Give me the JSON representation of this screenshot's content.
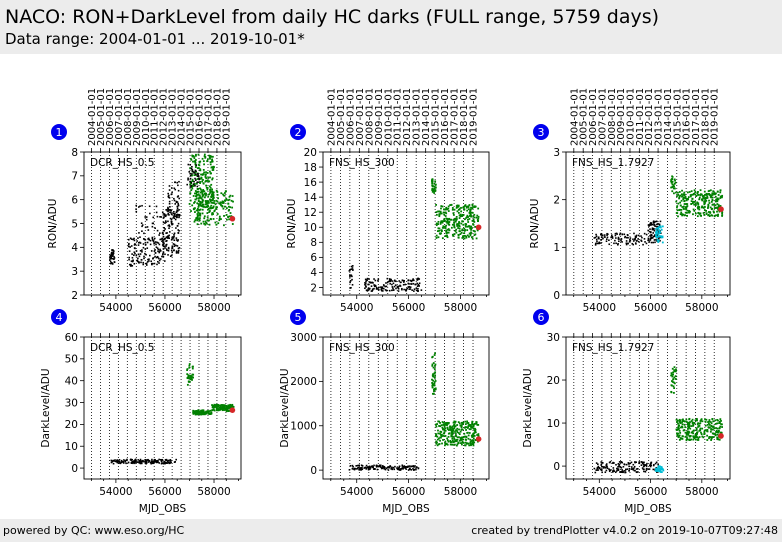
{
  "header": {
    "title": "NACO: RON+DarkLevel from daily HC darks (FULL range, 5759 days)",
    "subtitle": "Data range: 2004-01-01 ... 2019-10-01*"
  },
  "footer": {
    "left": "powered by QC: www.eso.org/HC",
    "right": "created by trendPlotter v4.0.2 on 2019-10-07T09:27:48"
  },
  "colors": {
    "early_points": "#000000",
    "late_points": "#008000",
    "marker_cyan": "#00bcd4",
    "latest_point": "#d62728",
    "badge": "#0000ee"
  },
  "chart_data": {
    "type": "scatter",
    "x_field": "MJD_OBS",
    "xlim": [
      52700,
      59100
    ],
    "x_ticks": [
      54000,
      56000,
      58000
    ],
    "year_markers": [
      {
        "label": "2004-01-01",
        "mjd": 53005
      },
      {
        "label": "2005-01-01",
        "mjd": 53371
      },
      {
        "label": "2006-01-01",
        "mjd": 53736
      },
      {
        "label": "2007-01-01",
        "mjd": 54101
      },
      {
        "label": "2008-01-01",
        "mjd": 54466
      },
      {
        "label": "2009-01-01",
        "mjd": 54832
      },
      {
        "label": "2010-01-01",
        "mjd": 55197
      },
      {
        "label": "2011-01-01",
        "mjd": 55562
      },
      {
        "label": "2012-01-01",
        "mjd": 55927
      },
      {
        "label": "2013-01-01",
        "mjd": 56293
      },
      {
        "label": "2014-01-01",
        "mjd": 56658
      },
      {
        "label": "2015-01-01",
        "mjd": 57023
      },
      {
        "label": "2016-01-01",
        "mjd": 57388
      },
      {
        "label": "2017-01-01",
        "mjd": 57754
      },
      {
        "label": "2018-01-01",
        "mjd": 58119
      },
      {
        "label": "2019-01-01",
        "mjd": 58484
      }
    ],
    "panels": [
      {
        "id": "1",
        "mode": "DCR_HS_0.5",
        "ylabel": "RON/ADU",
        "xlabel": "",
        "ylim": [
          2,
          8
        ],
        "yticks": [
          2,
          3,
          4,
          5,
          6,
          7,
          8
        ],
        "show_year_labels": true,
        "clusters": [
          {
            "x": [
              53750,
              53950
            ],
            "y": [
              3.3,
              3.9
            ],
            "n": 40,
            "color": "early"
          },
          {
            "x": [
              54500,
              56000
            ],
            "y": [
              3.2,
              4.4
            ],
            "n": 140,
            "color": "early"
          },
          {
            "x": [
              54800,
              56000
            ],
            "y": [
              4.2,
              5.8
            ],
            "n": 40,
            "color": "early"
          },
          {
            "x": [
              55900,
              56600
            ],
            "y": [
              3.6,
              5.6
            ],
            "n": 140,
            "color": "early"
          },
          {
            "x": [
              56100,
              56600
            ],
            "y": [
              5.2,
              6.8
            ],
            "n": 50,
            "color": "early"
          },
          {
            "x": [
              57000,
              58000
            ],
            "y": [
              5.5,
              7.9
            ],
            "n": 220,
            "color": "late"
          },
          {
            "x": [
              57200,
              58800
            ],
            "y": [
              4.9,
              6.4
            ],
            "n": 180,
            "color": "late"
          },
          {
            "x": [
              56900,
              57400
            ],
            "y": [
              6.5,
              7.5
            ],
            "n": 40,
            "color": "early"
          }
        ],
        "latest": {
          "x": 58750,
          "y": 5.2
        }
      },
      {
        "id": "2",
        "mode": "FNS_HS_300",
        "ylabel": "RON/ADU",
        "xlabel": "",
        "ylim": [
          1,
          20
        ],
        "yticks": [
          2,
          4,
          6,
          8,
          10,
          12,
          14,
          16,
          18,
          20
        ],
        "show_year_labels": true,
        "clusters": [
          {
            "x": [
              53700,
              53900
            ],
            "y": [
              1.4,
              5.0
            ],
            "n": 20,
            "color": "early"
          },
          {
            "x": [
              54300,
              56500
            ],
            "y": [
              1.5,
              3.2
            ],
            "n": 160,
            "color": "early"
          },
          {
            "x": [
              56900,
              57050
            ],
            "y": [
              14.5,
              16.5
            ],
            "n": 30,
            "color": "late"
          },
          {
            "x": [
              57050,
              58700
            ],
            "y": [
              8.5,
              13.0
            ],
            "n": 280,
            "color": "late"
          }
        ],
        "latest": {
          "x": 58700,
          "y": 10.0
        }
      },
      {
        "id": "3",
        "mode": "FNS_HS_1.7927",
        "ylabel": "RON/ADU",
        "xlabel": "",
        "ylim": [
          0,
          3
        ],
        "yticks": [
          0,
          1,
          2,
          3
        ],
        "show_year_labels": true,
        "clusters": [
          {
            "x": [
              53800,
              55900
            ],
            "y": [
              1.05,
              1.3
            ],
            "n": 110,
            "color": "early"
          },
          {
            "x": [
              55900,
              56400
            ],
            "y": [
              1.1,
              1.55
            ],
            "n": 90,
            "color": "early"
          },
          {
            "x": [
              56200,
              56500
            ],
            "y": [
              1.1,
              1.45
            ],
            "n": 40,
            "color": "cyan"
          },
          {
            "x": [
              56800,
              57000
            ],
            "y": [
              2.1,
              2.5
            ],
            "n": 25,
            "color": "late"
          },
          {
            "x": [
              57000,
              58800
            ],
            "y": [
              1.65,
              2.2
            ],
            "n": 260,
            "color": "late"
          }
        ],
        "latest": {
          "x": 58750,
          "y": 1.8
        }
      },
      {
        "id": "4",
        "mode": "DCR_HS_0.5",
        "ylabel": "DarkLevel/ADU",
        "xlabel": "MJD_OBS",
        "ylim": [
          -5,
          60
        ],
        "yticks": [
          0,
          10,
          20,
          30,
          40,
          50,
          60
        ],
        "show_year_labels": false,
        "clusters": [
          {
            "x": [
              53800,
              56500
            ],
            "y": [
              2.0,
              4.0
            ],
            "n": 160,
            "color": "early"
          },
          {
            "x": [
              56900,
              57150
            ],
            "y": [
              38,
              48
            ],
            "n": 35,
            "color": "late"
          },
          {
            "x": [
              57150,
              57900
            ],
            "y": [
              24.5,
              26.5
            ],
            "n": 110,
            "color": "late"
          },
          {
            "x": [
              57900,
              58800
            ],
            "y": [
              26,
              29
            ],
            "n": 130,
            "color": "late"
          }
        ],
        "latest": {
          "x": 58750,
          "y": 26.5
        }
      },
      {
        "id": "5",
        "mode": "FNS_HS_300",
        "ylabel": "DarkLevel/ADU",
        "xlabel": "MJD_OBS",
        "ylim": [
          -200,
          3000
        ],
        "yticks": [
          0,
          1000,
          2000,
          3000
        ],
        "show_year_labels": false,
        "clusters": [
          {
            "x": [
              53700,
              56500
            ],
            "y": [
              0,
              110
            ],
            "n": 150,
            "color": "early"
          },
          {
            "x": [
              56900,
              57050
            ],
            "y": [
              1700,
              2700
            ],
            "n": 40,
            "color": "late"
          },
          {
            "x": [
              57050,
              58700
            ],
            "y": [
              550,
              1100
            ],
            "n": 280,
            "color": "late"
          }
        ],
        "latest": {
          "x": 58700,
          "y": 700
        }
      },
      {
        "id": "6",
        "mode": "FNS_HS_1.7927",
        "ylabel": "DarkLevel/ADU",
        "xlabel": "MJD_OBS",
        "ylim": [
          -3,
          30
        ],
        "yticks": [
          0,
          10,
          20,
          30
        ],
        "show_year_labels": false,
        "clusters": [
          {
            "x": [
              53800,
              56300
            ],
            "y": [
              -1.5,
              1.0
            ],
            "n": 160,
            "color": "early"
          },
          {
            "x": [
              56200,
              56500
            ],
            "y": [
              -1.5,
              0.0
            ],
            "n": 35,
            "color": "cyan"
          },
          {
            "x": [
              56800,
              57000
            ],
            "y": [
              17,
              23
            ],
            "n": 30,
            "color": "late"
          },
          {
            "x": [
              57000,
              58800
            ],
            "y": [
              6,
              11
            ],
            "n": 260,
            "color": "late"
          }
        ],
        "latest": {
          "x": 58750,
          "y": 7.0
        }
      }
    ]
  }
}
